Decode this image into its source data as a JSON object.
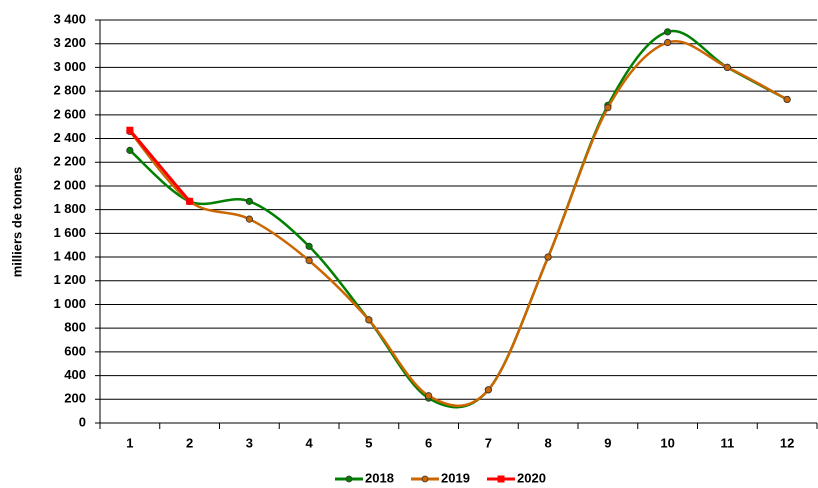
{
  "chart_data": {
    "type": "line",
    "y_label": "milliers  de tonnes",
    "categories": [
      "1",
      "2",
      "3",
      "4",
      "5",
      "6",
      "7",
      "8",
      "9",
      "10",
      "11",
      "12"
    ],
    "series": [
      {
        "name": "2018",
        "color": "#008000",
        "marker": "circle",
        "values": [
          2300,
          1870,
          1870,
          1490,
          870,
          210,
          280,
          1400,
          2680,
          3300,
          3000,
          2730
        ]
      },
      {
        "name": "2019",
        "color": "#cc6600",
        "marker": "circle",
        "values": [
          2460,
          1870,
          1720,
          1370,
          870,
          230,
          280,
          1400,
          2660,
          3210,
          3000,
          2730
        ]
      },
      {
        "name": "2020",
        "color": "#ff0000",
        "marker": "square",
        "values": [
          2470,
          1870,
          null,
          null,
          null,
          null,
          null,
          null,
          null,
          null,
          null,
          null
        ]
      }
    ],
    "smooth": true,
    "ylim": [
      0,
      3400
    ],
    "yticks": [
      0,
      200,
      400,
      600,
      800,
      {
        "value": 1000,
        "label": "1 000"
      },
      {
        "value": 1200,
        "label": "1 200"
      },
      {
        "value": 1400,
        "label": "1 400"
      },
      {
        "value": 1600,
        "label": "1 600"
      },
      {
        "value": 1800,
        "label": "1 800"
      },
      {
        "value": 2000,
        "label": "2 000"
      },
      {
        "value": 2200,
        "label": "2 200"
      },
      {
        "value": 2400,
        "label": "2 400"
      },
      {
        "value": 2600,
        "label": "2 600"
      },
      {
        "value": 2800,
        "label": "2 800"
      },
      {
        "value": 3000,
        "label": "3 000"
      },
      {
        "value": 3200,
        "label": "3 200"
      },
      {
        "value": 3400,
        "label": "3 400"
      }
    ],
    "grid": true,
    "legend": "bottom"
  }
}
